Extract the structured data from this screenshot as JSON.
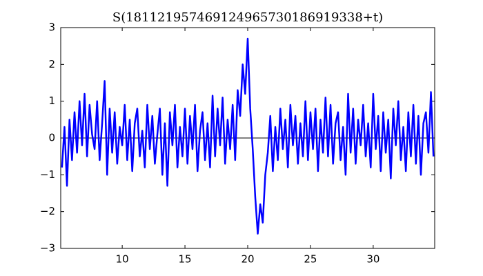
{
  "chart_data": {
    "type": "line",
    "title": "S(181121957469124965730186919338+t)",
    "x": [
      5.2,
      5.4,
      5.6,
      5.8,
      6.0,
      6.2,
      6.4,
      6.6,
      6.8,
      7.0,
      7.2,
      7.4,
      7.6,
      7.8,
      8.0,
      8.2,
      8.4,
      8.6,
      8.8,
      9.0,
      9.2,
      9.4,
      9.6,
      9.8,
      10.0,
      10.2,
      10.4,
      10.6,
      10.8,
      11.0,
      11.2,
      11.4,
      11.6,
      11.8,
      12.0,
      12.2,
      12.4,
      12.6,
      12.8,
      13.0,
      13.2,
      13.4,
      13.6,
      13.8,
      14.0,
      14.2,
      14.4,
      14.6,
      14.8,
      15.0,
      15.2,
      15.4,
      15.6,
      15.8,
      16.0,
      16.2,
      16.4,
      16.6,
      16.8,
      17.0,
      17.2,
      17.4,
      17.6,
      17.8,
      18.0,
      18.2,
      18.4,
      18.6,
      18.8,
      19.0,
      19.2,
      19.4,
      19.6,
      19.8,
      20.0,
      20.2,
      20.4,
      20.6,
      20.8,
      21.0,
      21.2,
      21.4,
      21.6,
      21.8,
      22.0,
      22.2,
      22.4,
      22.6,
      22.8,
      23.0,
      23.2,
      23.4,
      23.6,
      23.8,
      24.0,
      24.2,
      24.4,
      24.6,
      24.8,
      25.0,
      25.2,
      25.4,
      25.6,
      25.8,
      26.0,
      26.2,
      26.4,
      26.6,
      26.8,
      27.0,
      27.2,
      27.4,
      27.6,
      27.8,
      28.0,
      28.2,
      28.4,
      28.6,
      28.8,
      29.0,
      29.2,
      29.4,
      29.6,
      29.8,
      30.0,
      30.2,
      30.4,
      30.6,
      30.8,
      31.0,
      31.2,
      31.4,
      31.6,
      31.8,
      32.0,
      32.2,
      32.4,
      32.6,
      32.8,
      33.0,
      33.2,
      33.4,
      33.6,
      33.8,
      34.0,
      34.2,
      34.4,
      34.6,
      34.8
    ],
    "series": [
      {
        "name": "S",
        "color": "#0000ff",
        "values": [
          -0.8,
          0.3,
          -1.3,
          0.5,
          -0.6,
          0.7,
          -0.4,
          1.0,
          -0.2,
          1.2,
          -0.5,
          0.9,
          0.1,
          -0.3,
          1.0,
          -0.6,
          0.4,
          1.55,
          -1.0,
          0.8,
          -0.4,
          0.7,
          -0.7,
          0.3,
          -0.2,
          0.9,
          -0.6,
          0.5,
          -0.9,
          0.4,
          0.8,
          -0.5,
          0.2,
          -0.8,
          0.9,
          -0.3,
          0.6,
          -0.7,
          0.1,
          0.8,
          -1.0,
          0.4,
          -1.3,
          0.7,
          -0.2,
          0.9,
          -0.8,
          0.3,
          -0.5,
          0.8,
          -0.7,
          0.6,
          -0.3,
          0.9,
          -0.9,
          0.2,
          0.7,
          -0.6,
          0.4,
          -0.8,
          1.15,
          -0.5,
          0.8,
          -0.2,
          1.1,
          -0.7,
          0.5,
          -0.3,
          0.9,
          -0.6,
          1.3,
          0.6,
          2.0,
          1.2,
          2.7,
          0.8,
          -0.3,
          -1.6,
          -2.6,
          -1.8,
          -2.3,
          -1.0,
          -0.4,
          0.6,
          -0.9,
          0.3,
          -0.6,
          0.8,
          -0.3,
          0.5,
          -0.8,
          0.9,
          -0.2,
          0.6,
          -0.7,
          0.4,
          -0.5,
          1.0,
          -0.6,
          0.7,
          -0.3,
          0.8,
          -0.9,
          0.5,
          -0.4,
          1.1,
          -0.5,
          0.9,
          -0.7,
          0.4,
          0.7,
          -0.6,
          0.3,
          -1.0,
          1.2,
          -0.4,
          0.8,
          -0.7,
          0.5,
          -0.2,
          0.9,
          -0.5,
          0.4,
          -0.8,
          1.2,
          -0.3,
          0.6,
          -0.9,
          0.7,
          -0.4,
          0.5,
          -1.1,
          0.8,
          -0.2,
          1.0,
          -0.6,
          0.3,
          -0.9,
          0.7,
          -0.5,
          0.9,
          -0.7,
          0.6,
          -1.0,
          0.4,
          0.7,
          -0.4,
          1.25,
          -0.5
        ]
      }
    ],
    "hline": 0,
    "xlim": [
      5.1,
      34.9
    ],
    "xticks": [
      10,
      15,
      20,
      25,
      30
    ],
    "ylim": [
      -3,
      3
    ],
    "yticks": [
      {
        "value": -3,
        "label": "−3"
      },
      {
        "value": -2,
        "label": "−2"
      },
      {
        "value": -1,
        "label": "−1"
      },
      0,
      1,
      2,
      3
    ],
    "grid": false
  }
}
